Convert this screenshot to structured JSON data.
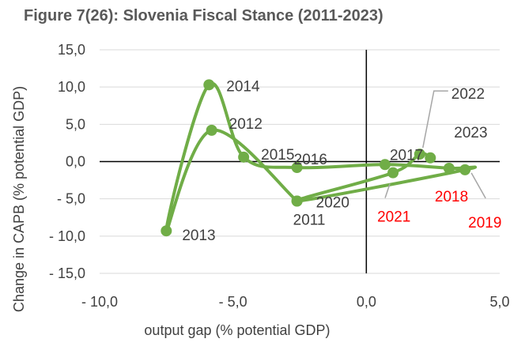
{
  "chart_data": {
    "type": "scatter",
    "title": "Figure 7(26): Slovenia Fiscal Stance (2011-2023)",
    "xlabel": "output gap (% potential GDP)",
    "ylabel": "Change in CAPB (% potential GDP)",
    "xlim": [
      -10.0,
      5.0
    ],
    "ylim": [
      -15.0,
      15.0
    ],
    "x_ticks": [
      "- 10,0",
      "- 5,0",
      "0,0",
      "5,0"
    ],
    "y_ticks": [
      "15,0",
      "10,0",
      "5,0",
      "0,0",
      "- 5,0",
      "- 10,0",
      "- 15,0"
    ],
    "grid": "horizontal",
    "line_style": "smoothed",
    "series_color": "#70AD47",
    "forecast_label_color": "#FF0000",
    "normal_label_color": "#404040",
    "points": [
      {
        "year": "2011",
        "x": -2.6,
        "y": -5.3,
        "label": "2011",
        "forecast": false
      },
      {
        "year": "2012",
        "x": -5.8,
        "y": 4.2,
        "label": "2012",
        "forecast": false
      },
      {
        "year": "2013",
        "x": -7.5,
        "y": -9.3,
        "label": "2013",
        "forecast": false
      },
      {
        "year": "2014",
        "x": -5.9,
        "y": 10.3,
        "label": "2014",
        "forecast": false
      },
      {
        "year": "2015",
        "x": -4.6,
        "y": 0.6,
        "label": "2015",
        "forecast": false
      },
      {
        "year": "2016",
        "x": -2.6,
        "y": -0.8,
        "label": "2016",
        "forecast": false
      },
      {
        "year": "2017",
        "x": 0.7,
        "y": -0.4,
        "label": "2017",
        "forecast": false
      },
      {
        "year": "2018",
        "x": 3.1,
        "y": -0.9,
        "label": "2018",
        "forecast": true
      },
      {
        "year": "2019",
        "x": 3.7,
        "y": -1.1,
        "label": "2019",
        "forecast": true
      },
      {
        "year": "2020",
        "x": -2.6,
        "y": -5.3,
        "label": "2020",
        "forecast": false
      },
      {
        "year": "2021",
        "x": 1.0,
        "y": -1.5,
        "label": "2021",
        "forecast": true
      },
      {
        "year": "2022",
        "x": 2.0,
        "y": 1.0,
        "label": "2022",
        "forecast": false
      },
      {
        "year": "2023",
        "x": 2.4,
        "y": 0.5,
        "label": "2023",
        "forecast": false
      }
    ]
  }
}
